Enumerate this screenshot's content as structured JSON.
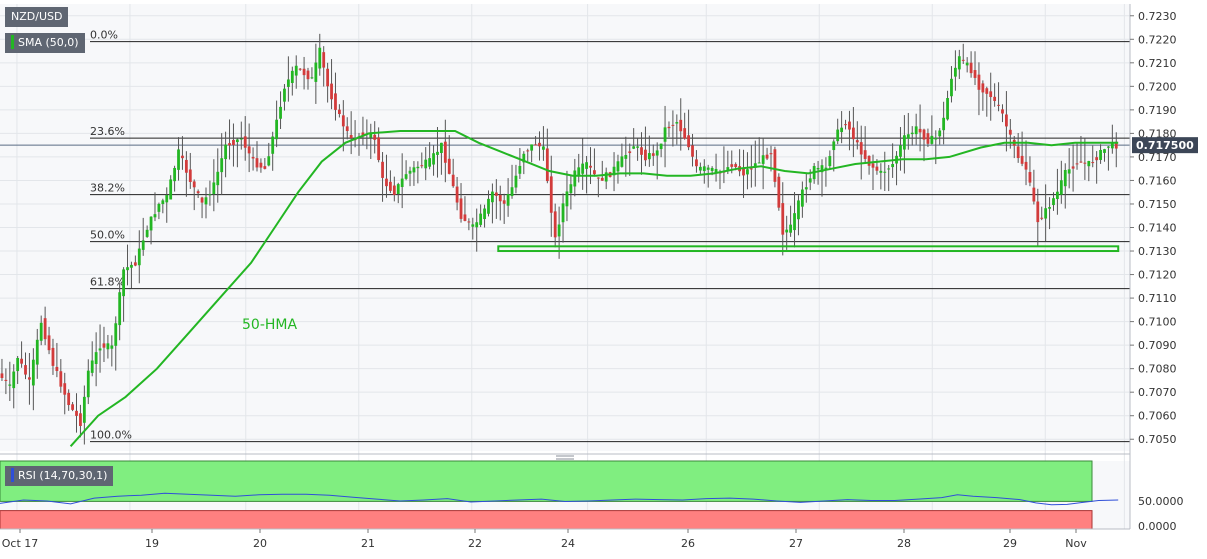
{
  "instrument": {
    "symbol": "NZD/USD"
  },
  "indicators": {
    "sma": {
      "label": "SMA (50,0)",
      "color": "#23b623"
    },
    "rsi": {
      "label": "RSI (14,70,30,1)",
      "color": "#2f4fd8",
      "value_label": "50.0000",
      "zero_label": "0.0000"
    }
  },
  "annotations": {
    "hma_label": "50-HMA",
    "last_price": "0.717500"
  },
  "colors": {
    "up": "#23b623",
    "down": "#d23b3b",
    "hline": "#222222",
    "support": "#23b623",
    "rsi_over": "#80ee80",
    "rsi_under": "#ff8080"
  },
  "chart_data": {
    "type": "candlestick",
    "title": "NZD/USD",
    "y_axis": {
      "ticks": [
        "0.7230",
        "0.7220",
        "0.7210",
        "0.7200",
        "0.7190",
        "0.7180",
        "0.7170",
        "0.7160",
        "0.7150",
        "0.7140",
        "0.7130",
        "0.7120",
        "0.7110",
        "0.7100",
        "0.7090",
        "0.7080",
        "0.7070",
        "0.7060",
        "0.7050"
      ],
      "range": [
        0.7045,
        0.7235
      ]
    },
    "x_axis": {
      "ticks": [
        "Oct 17",
        "19",
        "20",
        "21",
        "22",
        "24",
        "26",
        "27",
        "28",
        "29",
        "Nov"
      ]
    },
    "fibonacci_levels": [
      {
        "label": "0.0%",
        "price": 0.7219
      },
      {
        "label": "23.6%",
        "price": 0.7178
      },
      {
        "label": "38.2%",
        "price": 0.7154
      },
      {
        "label": "50.0%",
        "price": 0.7134
      },
      {
        "label": "61.8%",
        "price": 0.7114
      },
      {
        "label": "100.0%",
        "price": 0.7049
      }
    ],
    "support_zone": {
      "price_high": 0.7132,
      "price_low": 0.713
    },
    "last_price": 0.7175,
    "price_path": [
      [
        0,
        0.7078
      ],
      [
        3,
        0.7072
      ],
      [
        5,
        0.7085
      ],
      [
        8,
        0.7074
      ],
      [
        11,
        0.71
      ],
      [
        14,
        0.7082
      ],
      [
        18,
        0.7065
      ],
      [
        21,
        0.7057
      ],
      [
        23,
        0.7079
      ],
      [
        26,
        0.709
      ],
      [
        29,
        0.7089
      ],
      [
        32,
        0.7122
      ],
      [
        35,
        0.7125
      ],
      [
        38,
        0.714
      ],
      [
        41,
        0.715
      ],
      [
        43,
        0.7153
      ],
      [
        46,
        0.7172
      ],
      [
        49,
        0.716
      ],
      [
        52,
        0.715
      ],
      [
        55,
        0.7158
      ],
      [
        58,
        0.7175
      ],
      [
        62,
        0.7178
      ],
      [
        65,
        0.7168
      ],
      [
        68,
        0.7165
      ],
      [
        71,
        0.7185
      ],
      [
        73,
        0.72
      ],
      [
        76,
        0.7208
      ],
      [
        80,
        0.7203
      ],
      [
        82,
        0.7215
      ],
      [
        84,
        0.72
      ],
      [
        87,
        0.7187
      ],
      [
        90,
        0.7177
      ],
      [
        93,
        0.718
      ],
      [
        96,
        0.7178
      ],
      [
        98,
        0.716
      ],
      [
        101,
        0.7155
      ],
      [
        104,
        0.7163
      ],
      [
        107,
        0.7166
      ],
      [
        110,
        0.7168
      ],
      [
        113,
        0.7175
      ],
      [
        115,
        0.7163
      ],
      [
        118,
        0.7145
      ],
      [
        121,
        0.714
      ],
      [
        124,
        0.7147
      ],
      [
        126,
        0.7155
      ],
      [
        129,
        0.715
      ],
      [
        131,
        0.7157
      ],
      [
        134,
        0.7172
      ],
      [
        137,
        0.7176
      ],
      [
        139,
        0.7173
      ],
      [
        142,
        0.7135
      ],
      [
        144,
        0.715
      ],
      [
        147,
        0.7163
      ],
      [
        150,
        0.7167
      ],
      [
        153,
        0.716
      ],
      [
        156,
        0.7163
      ],
      [
        158,
        0.7167
      ],
      [
        162,
        0.7175
      ],
      [
        165,
        0.717
      ],
      [
        168,
        0.7172
      ],
      [
        170,
        0.7182
      ],
      [
        173,
        0.7185
      ],
      [
        176,
        0.7175
      ],
      [
        178,
        0.7165
      ],
      [
        181,
        0.7165
      ],
      [
        184,
        0.7163
      ],
      [
        187,
        0.7167
      ],
      [
        190,
        0.7163
      ],
      [
        193,
        0.7167
      ],
      [
        197,
        0.7172
      ],
      [
        200,
        0.7138
      ],
      [
        202,
        0.714
      ],
      [
        205,
        0.7155
      ],
      [
        208,
        0.7165
      ],
      [
        211,
        0.7165
      ],
      [
        213,
        0.7178
      ],
      [
        216,
        0.7185
      ],
      [
        219,
        0.7175
      ],
      [
        222,
        0.7167
      ],
      [
        225,
        0.7163
      ],
      [
        228,
        0.7167
      ],
      [
        231,
        0.7178
      ],
      [
        234,
        0.7182
      ],
      [
        237,
        0.7177
      ],
      [
        239,
        0.7178
      ],
      [
        241,
        0.7186
      ],
      [
        243,
        0.7204
      ],
      [
        245,
        0.7212
      ],
      [
        248,
        0.7207
      ],
      [
        250,
        0.72
      ],
      [
        253,
        0.7196
      ],
      [
        256,
        0.7188
      ],
      [
        258,
        0.7178
      ],
      [
        260,
        0.717
      ],
      [
        262,
        0.7165
      ],
      [
        265,
        0.7143
      ],
      [
        267,
        0.7147
      ],
      [
        270,
        0.7155
      ],
      [
        272,
        0.7163
      ],
      [
        275,
        0.7168
      ],
      [
        278,
        0.7167
      ],
      [
        280,
        0.717
      ],
      [
        283,
        0.7175
      ]
    ],
    "hma_path": [
      [
        18,
        0.7047
      ],
      [
        25,
        0.706
      ],
      [
        32,
        0.7068
      ],
      [
        40,
        0.708
      ],
      [
        48,
        0.7095
      ],
      [
        56,
        0.711
      ],
      [
        64,
        0.7125
      ],
      [
        70,
        0.714
      ],
      [
        76,
        0.7155
      ],
      [
        82,
        0.7168
      ],
      [
        88,
        0.7176
      ],
      [
        94,
        0.718
      ],
      [
        102,
        0.7181
      ],
      [
        110,
        0.7181
      ],
      [
        116,
        0.7181
      ],
      [
        122,
        0.7176
      ],
      [
        128,
        0.7172
      ],
      [
        134,
        0.7168
      ],
      [
        140,
        0.7164
      ],
      [
        146,
        0.7162
      ],
      [
        152,
        0.7162
      ],
      [
        158,
        0.7163
      ],
      [
        164,
        0.7163
      ],
      [
        170,
        0.7162
      ],
      [
        176,
        0.7162
      ],
      [
        182,
        0.7163
      ],
      [
        188,
        0.7165
      ],
      [
        194,
        0.7166
      ],
      [
        200,
        0.7164
      ],
      [
        206,
        0.7163
      ],
      [
        212,
        0.7165
      ],
      [
        218,
        0.7167
      ],
      [
        224,
        0.7168
      ],
      [
        230,
        0.7169
      ],
      [
        236,
        0.7169
      ],
      [
        242,
        0.717
      ],
      [
        250,
        0.7174
      ],
      [
        256,
        0.7176
      ],
      [
        262,
        0.7176
      ],
      [
        268,
        0.7175
      ],
      [
        274,
        0.7176
      ],
      [
        280,
        0.7176
      ],
      [
        285,
        0.7176
      ]
    ],
    "rsi_series": [
      [
        0,
        45
      ],
      [
        6,
        52
      ],
      [
        12,
        50
      ],
      [
        18,
        44
      ],
      [
        24,
        56
      ],
      [
        30,
        60
      ],
      [
        36,
        62
      ],
      [
        42,
        66
      ],
      [
        48,
        64
      ],
      [
        54,
        62
      ],
      [
        60,
        60
      ],
      [
        66,
        63
      ],
      [
        72,
        64
      ],
      [
        78,
        64
      ],
      [
        84,
        62
      ],
      [
        90,
        58
      ],
      [
        96,
        54
      ],
      [
        102,
        50
      ],
      [
        108,
        52
      ],
      [
        114,
        55
      ],
      [
        120,
        48
      ],
      [
        126,
        50
      ],
      [
        132,
        52
      ],
      [
        138,
        54
      ],
      [
        144,
        49
      ],
      [
        150,
        50
      ],
      [
        156,
        52
      ],
      [
        162,
        54
      ],
      [
        168,
        53
      ],
      [
        174,
        52
      ],
      [
        180,
        55
      ],
      [
        186,
        56
      ],
      [
        192,
        54
      ],
      [
        198,
        50
      ],
      [
        204,
        47
      ],
      [
        210,
        50
      ],
      [
        216,
        53
      ],
      [
        222,
        51
      ],
      [
        228,
        51
      ],
      [
        234,
        54
      ],
      [
        240,
        57
      ],
      [
        244,
        63
      ],
      [
        248,
        60
      ],
      [
        254,
        57
      ],
      [
        260,
        53
      ],
      [
        264,
        46
      ],
      [
        268,
        42
      ],
      [
        272,
        43
      ],
      [
        276,
        47
      ],
      [
        280,
        51
      ],
      [
        285,
        52
      ]
    ],
    "rsi_levels": {
      "overbought": 70,
      "oversold": 30,
      "range": [
        0,
        100
      ]
    }
  }
}
